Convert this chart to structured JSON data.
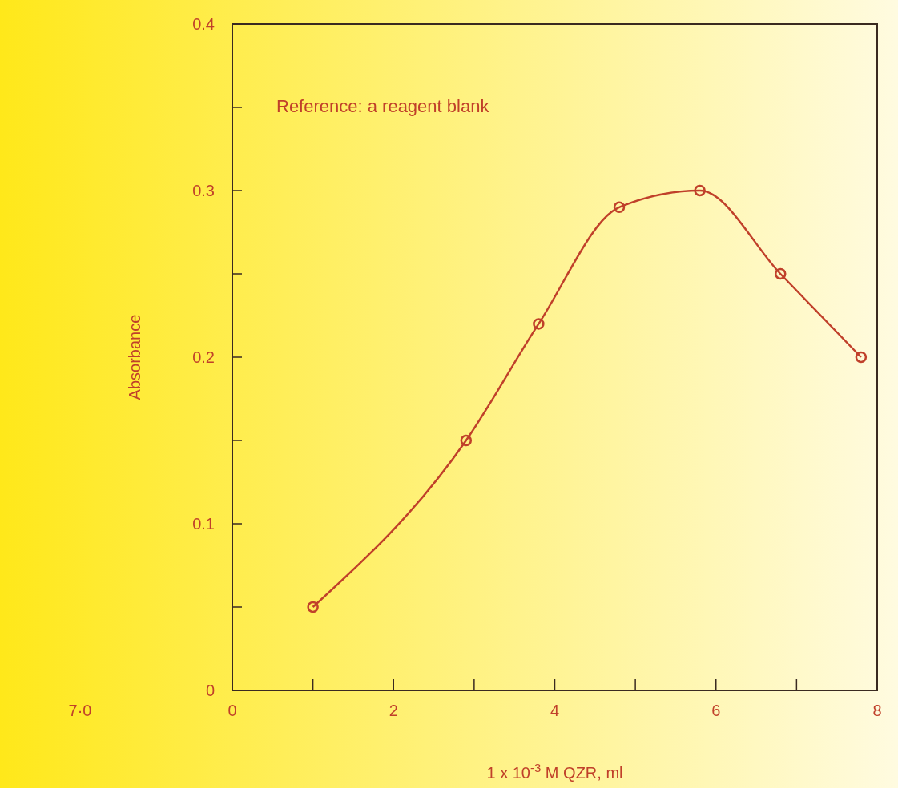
{
  "chart_data": {
    "type": "line",
    "xlabel": "1 x 10$^{-3}$ M QZR, ml",
    "ylabel": "Absorbance",
    "annotations": [
      "Reference: a reagent blank",
      "7·0"
    ],
    "x": [
      1,
      2.9,
      3.8,
      4.8,
      5.8,
      6.8,
      7.8
    ],
    "series": [
      {
        "color": "#c0402a",
        "values": [
          0.05,
          0.15,
          0.22,
          0.29,
          0.3,
          0.25,
          0.2
        ]
      }
    ],
    "xlim": [
      0,
      8
    ],
    "xticks": [
      0,
      {
        "value": 1,
        "label": null
      },
      2,
      {
        "value": 3,
        "label": null
      },
      4,
      {
        "value": 5,
        "label": null
      },
      6,
      {
        "value": 7,
        "label": null
      },
      8
    ],
    "ylim": [
      0,
      0.4
    ],
    "yticks": [
      0,
      {
        "value": 0.05,
        "label": null
      },
      0.1,
      {
        "value": 0.15,
        "label": null
      },
      0.2,
      {
        "value": 0.25,
        "label": null
      },
      0.3,
      {
        "value": 0.35,
        "label": null
      },
      0.4
    ],
    "marker": "circle",
    "line_style": "solid",
    "grid": false
  }
}
